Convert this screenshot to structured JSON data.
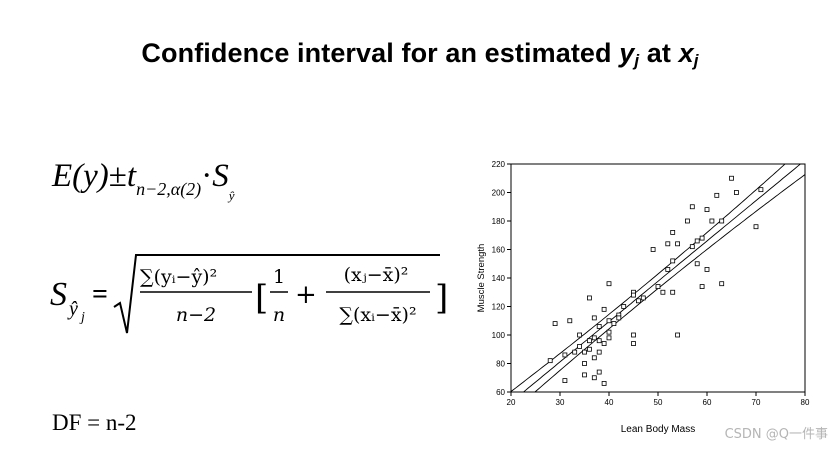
{
  "title": {
    "prefix": "Confidence interval for an estimated ",
    "y_var": "y",
    "y_sub": "j",
    "mid": " at ",
    "x_var": "x",
    "x_sub": "j"
  },
  "formula_ci": {
    "expr_left": "E(y)",
    "pm": "±",
    "t": "t",
    "t_sub": "n−2,α(2)",
    "dot": "·",
    "s": "S",
    "s_sub": "ŷ"
  },
  "formula_se": {
    "lhs": "S",
    "lhs_sub": "ŷ",
    "lhs_subsub": "j",
    "eq": "=",
    "num1": "∑(yᵢ−ŷ)²",
    "den1": "n−2",
    "open": "[",
    "frac2_num": "1",
    "frac2_den": "n",
    "plus": "+",
    "num3": "(xⱼ−x̄)²",
    "den3": "∑(xᵢ−x̄)²",
    "close": "]"
  },
  "df_text": "DF = n-2",
  "chart_data": {
    "type": "scatter",
    "xlabel": "Lean Body Mass",
    "ylabel": "Muscle Strength",
    "xlim": [
      20,
      80
    ],
    "ylim": [
      60,
      220
    ],
    "xticks": [
      20,
      30,
      40,
      50,
      60,
      70,
      80
    ],
    "yticks": [
      60,
      80,
      100,
      120,
      140,
      160,
      180,
      200,
      220
    ],
    "regression": {
      "intercept": -3.8,
      "slope": 2.83
    },
    "ci_half_width": {
      "at_mean": 5,
      "at_edge": 10,
      "x_mean": 45
    },
    "points": [
      [
        28,
        82
      ],
      [
        29,
        108
      ],
      [
        31,
        68
      ],
      [
        31,
        86
      ],
      [
        32,
        110
      ],
      [
        33,
        88
      ],
      [
        34,
        92
      ],
      [
        34,
        100
      ],
      [
        35,
        80
      ],
      [
        35,
        72
      ],
      [
        35,
        88
      ],
      [
        36,
        96
      ],
      [
        36,
        126
      ],
      [
        36,
        90
      ],
      [
        37,
        70
      ],
      [
        37,
        98
      ],
      [
        37,
        84
      ],
      [
        37,
        112
      ],
      [
        38,
        74
      ],
      [
        38,
        106
      ],
      [
        38,
        96
      ],
      [
        38,
        88
      ],
      [
        39,
        118
      ],
      [
        39,
        66
      ],
      [
        39,
        94
      ],
      [
        40,
        102
      ],
      [
        40,
        110
      ],
      [
        40,
        136
      ],
      [
        40,
        98
      ],
      [
        41,
        108
      ],
      [
        42,
        114
      ],
      [
        42,
        112
      ],
      [
        43,
        120
      ],
      [
        45,
        130
      ],
      [
        45,
        128
      ],
      [
        45,
        100
      ],
      [
        45,
        94
      ],
      [
        46,
        124
      ],
      [
        47,
        126
      ],
      [
        49,
        160
      ],
      [
        50,
        134
      ],
      [
        51,
        130
      ],
      [
        52,
        146
      ],
      [
        52,
        164
      ],
      [
        53,
        152
      ],
      [
        53,
        172
      ],
      [
        53,
        130
      ],
      [
        54,
        100
      ],
      [
        54,
        164
      ],
      [
        56,
        180
      ],
      [
        57,
        162
      ],
      [
        57,
        190
      ],
      [
        58,
        150
      ],
      [
        58,
        166
      ],
      [
        59,
        168
      ],
      [
        59,
        134
      ],
      [
        60,
        146
      ],
      [
        60,
        188
      ],
      [
        61,
        180
      ],
      [
        62,
        198
      ],
      [
        63,
        180
      ],
      [
        63,
        136
      ],
      [
        65,
        210
      ],
      [
        66,
        200
      ],
      [
        70,
        176
      ],
      [
        71,
        202
      ]
    ]
  },
  "watermark": "CSDN @Q一件事"
}
